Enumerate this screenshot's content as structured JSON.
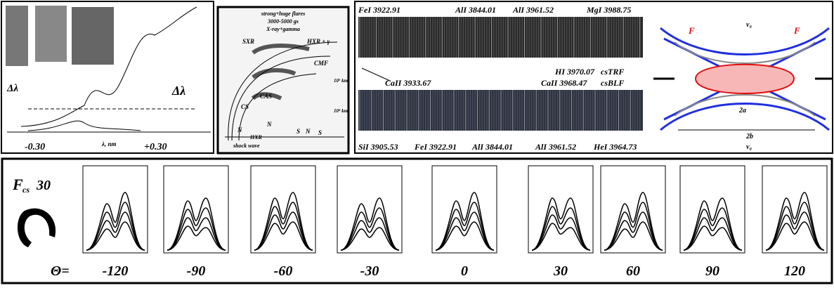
{
  "panel_a": {
    "labels": [
      "Δλ",
      "Δλ"
    ],
    "axis": {
      "left": "-0.30",
      "unit": "λ, nm",
      "right": "+0.30"
    }
  },
  "panel_b": {
    "title": [
      "strong+huge flares",
      "3000-5000 gs",
      "X-ray+gamma"
    ],
    "labels": [
      "SXR",
      "HXR + γ",
      "CMF",
      "10⁵ km",
      "10⁴ km",
      "CAS",
      "CS",
      "N",
      "N",
      "S",
      "N",
      "S",
      "HXR",
      "shock wave"
    ]
  },
  "panel_c": {
    "top_lines": [
      "FeI 3922.91",
      "AlI 3844.01",
      "AlI 3961.52",
      "MgI 3988.75"
    ],
    "middle_lines": [
      "CaII 3933.67",
      "HI 3970.07",
      "CaII 3968.47"
    ],
    "legend": [
      "csTRF",
      "csBLF"
    ],
    "bottom_lines": [
      "SiI 3905.53",
      "FeI 3922.91",
      "AlI 3844.01",
      "AlI 3961.52",
      "HeI 3964.73"
    ]
  },
  "panel_d": {
    "labels": [
      "F",
      "F",
      "v₀",
      "v₀",
      "2a",
      "2b"
    ]
  },
  "panel_e": {
    "flux": {
      "symbol": "F",
      "subscript": "cs",
      "value": "30"
    },
    "theta_label": "Θ=",
    "angles": [
      "-120",
      "-90",
      "-60",
      "-30",
      "0",
      "30",
      "60",
      "90",
      "120"
    ]
  }
}
